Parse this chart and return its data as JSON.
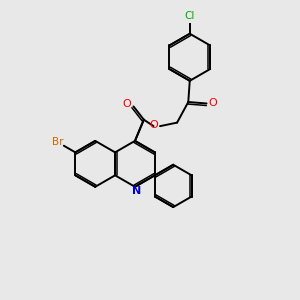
{
  "background_color": "#e8e8e8",
  "bond_color": "#000000",
  "atom_colors": {
    "N": "#0000cc",
    "O": "#ff0000",
    "Br": "#cc6600",
    "Cl": "#00aa00"
  },
  "figsize": [
    3.0,
    3.0
  ],
  "dpi": 100
}
